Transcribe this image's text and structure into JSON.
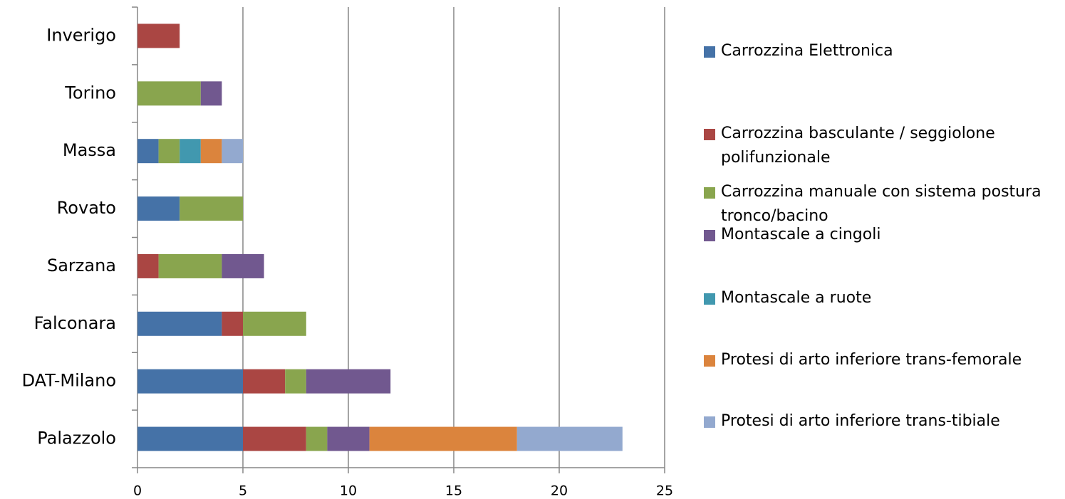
{
  "chart_data": {
    "type": "bar",
    "orientation": "horizontal",
    "stacked": true,
    "categories": [
      "Inverigo",
      "Torino",
      "Massa",
      "Rovato",
      "Sarzana",
      "Falconara",
      "DAT-Milano",
      "Palazzolo"
    ],
    "series": [
      {
        "name": "Carrozzina Elettronica",
        "color": "#4572A7",
        "values": [
          0,
          0,
          1,
          2,
          0,
          4,
          5,
          5
        ]
      },
      {
        "name": "Carrozzina basculante / seggiolone polifunzionale",
        "color": "#AA4643",
        "values": [
          2,
          0,
          0,
          0,
          1,
          1,
          2,
          3
        ]
      },
      {
        "name": "Carrozzina manuale con sistema postura tronco/bacino",
        "color": "#89A54E",
        "values": [
          0,
          3,
          1,
          3,
          3,
          3,
          1,
          1
        ]
      },
      {
        "name": "Montascale a cingoli",
        "color": "#71588F",
        "values": [
          0,
          1,
          0,
          0,
          2,
          0,
          4,
          2
        ]
      },
      {
        "name": "Montascale a ruote",
        "color": "#4198AF",
        "values": [
          0,
          0,
          1,
          0,
          0,
          0,
          0,
          0
        ]
      },
      {
        "name": "Protesi di arto inferiore trans-femorale",
        "color": "#DB843D",
        "values": [
          0,
          0,
          1,
          0,
          0,
          0,
          0,
          7
        ]
      },
      {
        "name": "Protesi di arto inferiore trans-tibiale",
        "color": "#93A9CF",
        "values": [
          0,
          0,
          1,
          0,
          0,
          0,
          0,
          5
        ]
      }
    ],
    "xlim": [
      0,
      25
    ],
    "xticks": [
      0,
      5,
      10,
      15,
      20,
      25
    ],
    "grid": true,
    "legend": "right"
  }
}
